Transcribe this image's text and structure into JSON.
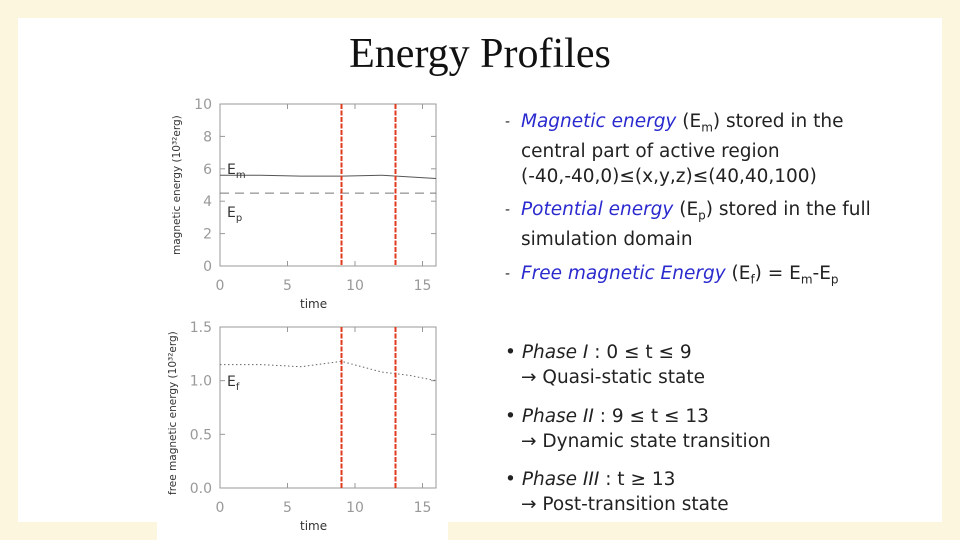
{
  "slide": {
    "title": "Energy Profiles"
  },
  "colors": {
    "marker": "#e03a1e",
    "text_highlight": "#2a2acf"
  },
  "chart_data": [
    {
      "type": "line",
      "ylabel": "magnetic energy (10³²erg)",
      "xlabel": "time",
      "xlim": [
        0,
        16
      ],
      "ylim": [
        0,
        10
      ],
      "xticks": [
        "0",
        "5",
        "10",
        "15"
      ],
      "yticks": [
        "0",
        "2",
        "4",
        "6",
        "8",
        "10"
      ],
      "series": [
        {
          "name": "Em",
          "style": "solid",
          "x": [
            0,
            3,
            6,
            9,
            12,
            16
          ],
          "values": [
            5.6,
            5.6,
            5.55,
            5.55,
            5.6,
            5.4
          ]
        },
        {
          "name": "Ep",
          "style": "dashed",
          "x": [
            0,
            16
          ],
          "values": [
            4.5,
            4.5
          ]
        }
      ],
      "series_labels": {
        "Em_main": "E",
        "Em_sub": "m",
        "Ep_main": "E",
        "Ep_sub": "p"
      },
      "vlines": [
        9,
        13
      ]
    },
    {
      "type": "line",
      "ylabel": "free magnetic energy (10³²erg)",
      "xlabel": "time",
      "xlim": [
        0,
        16
      ],
      "ylim": [
        0,
        1.5
      ],
      "xticks": [
        "0",
        "5",
        "10",
        "15"
      ],
      "yticks": [
        "0.0",
        "0.5",
        "1.0",
        "1.5"
      ],
      "series": [
        {
          "name": "Ef",
          "style": "dotted",
          "x": [
            0,
            3,
            6,
            9,
            10.5,
            12,
            14,
            16
          ],
          "values": [
            1.15,
            1.15,
            1.13,
            1.18,
            1.13,
            1.08,
            1.05,
            1.0
          ]
        }
      ],
      "series_labels": {
        "Ef_main": "E",
        "Ef_sub": "f"
      },
      "vlines": [
        9,
        13
      ]
    }
  ],
  "text": {
    "b1": {
      "dash": "-",
      "em": "Magnetic energy",
      "sym_open": " (E",
      "sym_sub": "m",
      "sym_close": ")",
      "rest1": " stored in the",
      "line2": "central part of active region",
      "line3": "(-40,-40,0)≤(x,y,z)≤(40,40,100)"
    },
    "b2": {
      "dash": "-",
      "em": "Potential energy",
      "sym_open": " (E",
      "sym_sub": "p",
      "sym_close": ")",
      "rest1": " stored in the full",
      "line2": "simulation domain"
    },
    "b3": {
      "dash": "-",
      "em": "Free magnetic Energy",
      "open": " (E",
      "sub_f": "f",
      "mid": ") = E",
      "sub_m": "m",
      "minus": "-E",
      "sub_p": "p"
    },
    "phases": [
      {
        "bullet": "•",
        "name": "Phase I",
        "range": " : 0 ≤ t ≤ 9",
        "desc": "→ Quasi-static state"
      },
      {
        "bullet": "•",
        "name": "Phase II",
        "range": " : 9 ≤ t ≤ 13",
        "desc": "→ Dynamic state transition"
      },
      {
        "bullet": "•",
        "name": "Phase III",
        "range": " : t ≥ 13",
        "desc": "→ Post-transition state"
      }
    ]
  }
}
